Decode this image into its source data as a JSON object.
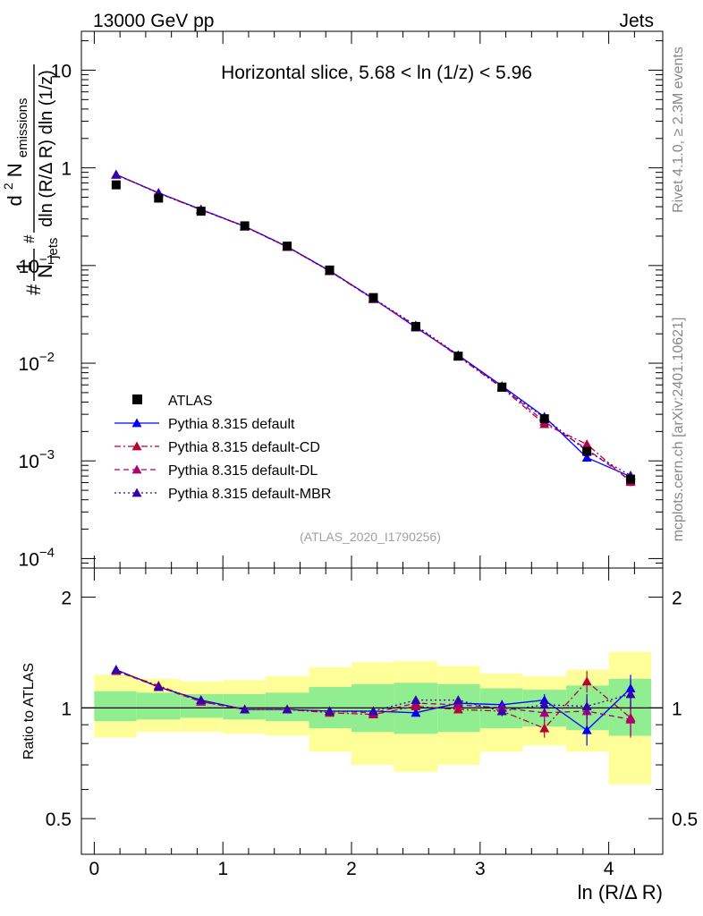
{
  "header": {
    "left": "13000 GeV pp",
    "right": "Jets"
  },
  "side_labels": {
    "rivet": "Rivet 4.1.0, ≥ 2.3M events",
    "mcplots": "mcplots.cern.ch [arXiv:2401.10621]"
  },
  "chart_data": [
    {
      "type": "line",
      "title": "Horizontal slice, 5.68 < ln (1/z) < 5.96",
      "watermark": "(ATLAS_2020_I1790256)",
      "ylabel": {
        "prefix": "#",
        "numerator_1": "1",
        "denominator_1": "N",
        "denominator_1_sub": "jets",
        "prefix_2": "#",
        "numerator_2": "d",
        "numerator_2_sup": "2",
        "numerator_2_rest": " N",
        "numerator_2_sub": "emissions",
        "denominator_2": "dln (R/Δ R) dln (1/z)"
      },
      "yscale": "log",
      "xlim": [
        -0.1,
        4.42
      ],
      "ylim": [
        8e-05,
        25
      ],
      "x_ticks": [
        0,
        1,
        2,
        3,
        4
      ],
      "y_ticks": [
        {
          "value": 10,
          "label": "10",
          "exp": ""
        },
        {
          "value": 1,
          "label": "1",
          "exp": ""
        },
        {
          "value": 0.1,
          "label": "10",
          "exp": "−1"
        },
        {
          "value": 0.01,
          "label": "10",
          "exp": "−2"
        },
        {
          "value": 0.001,
          "label": "10",
          "exp": "−3"
        },
        {
          "value": 0.0001,
          "label": "10",
          "exp": "−4"
        }
      ],
      "x": [
        0.17,
        0.5,
        0.83,
        1.17,
        1.5,
        1.83,
        2.17,
        2.5,
        2.83,
        3.17,
        3.5,
        3.83,
        4.17
      ],
      "bin_edges": [
        0,
        0.33,
        0.67,
        1.0,
        1.33,
        1.67,
        2.0,
        2.33,
        2.67,
        3.0,
        3.33,
        3.67,
        4.0,
        4.33
      ],
      "series": [
        {
          "name": "ATLAS",
          "style": "data",
          "color": "#000000",
          "values": [
            0.67,
            0.49,
            0.36,
            0.255,
            0.158,
            0.09,
            0.047,
            0.0238,
            0.0118,
            0.0057,
            0.0027,
            0.00125,
            0.00065
          ]
        },
        {
          "name": "Pythia 8.315 default",
          "style": "solid",
          "color": "#0000ff",
          "values": [
            0.855,
            0.555,
            0.375,
            0.252,
            0.156,
            0.0885,
            0.0458,
            0.0232,
            0.0121,
            0.00585,
            0.00283,
            0.00108,
            0.00069
          ],
          "errors": [
            0.02,
            0.01,
            0.006,
            0.004,
            0.002,
            0.001,
            0.0006,
            0.0003,
            0.0002,
            0.0001,
            8e-05,
            0.0001,
            6e-05
          ]
        },
        {
          "name": "Pythia 8.315 default-CD",
          "style": "dashdot",
          "color": "#bb0033",
          "values": [
            0.85,
            0.55,
            0.372,
            0.25,
            0.155,
            0.0875,
            0.0452,
            0.0241,
            0.0117,
            0.0056,
            0.00238,
            0.00148,
            0.00061
          ],
          "errors": [
            0.02,
            0.01,
            0.006,
            0.004,
            0.002,
            0.001,
            0.0006,
            0.0003,
            0.0002,
            0.0001,
            8e-05,
            0.00012,
            6e-05
          ]
        },
        {
          "name": "Pythia 8.315 default-DL",
          "style": "dashed",
          "color": "#aa0077",
          "values": [
            0.852,
            0.552,
            0.373,
            0.251,
            0.155,
            0.088,
            0.0454,
            0.0236,
            0.0119,
            0.00575,
            0.00252,
            0.00132,
            0.00063
          ],
          "errors": [
            0.02,
            0.01,
            0.006,
            0.004,
            0.002,
            0.001,
            0.0006,
            0.0003,
            0.0002,
            0.0001,
            8e-05,
            0.00012,
            6e-05
          ]
        },
        {
          "name": "Pythia 8.315 default-MBR",
          "style": "dotted",
          "color": "#3300aa",
          "values": [
            0.853,
            0.553,
            0.374,
            0.252,
            0.156,
            0.0885,
            0.046,
            0.0244,
            0.0121,
            0.0056,
            0.00276,
            0.00126,
            0.00071
          ],
          "errors": [
            0.02,
            0.01,
            0.006,
            0.004,
            0.002,
            0.001,
            0.0006,
            0.0003,
            0.0002,
            0.0001,
            8e-05,
            0.00012,
            6e-05
          ]
        }
      ]
    },
    {
      "type": "line",
      "ylabel": "Ratio to ATLAS",
      "xlabel": "ln (R/Δ R)",
      "yscale": "log",
      "xlim": [
        -0.1,
        4.42
      ],
      "ylim": [
        0.4,
        2.4
      ],
      "x_ticks": [
        0,
        1,
        2,
        3,
        4
      ],
      "y_ticks": [
        0.5,
        1,
        2
      ],
      "bands": {
        "bin_edges": [
          0,
          0.33,
          0.67,
          1.0,
          1.33,
          1.67,
          2.0,
          2.33,
          2.67,
          3.0,
          3.33,
          3.67,
          4.0,
          4.33
        ],
        "yellow_lo": [
          0.83,
          0.86,
          0.86,
          0.85,
          0.84,
          0.76,
          0.7,
          0.67,
          0.7,
          0.76,
          0.79,
          0.76,
          0.62
        ],
        "yellow_hi": [
          1.23,
          1.2,
          1.18,
          1.19,
          1.22,
          1.29,
          1.33,
          1.34,
          1.3,
          1.24,
          1.22,
          1.27,
          1.42
        ],
        "green_lo": [
          0.92,
          0.93,
          0.94,
          0.93,
          0.92,
          0.88,
          0.86,
          0.85,
          0.86,
          0.88,
          0.89,
          0.87,
          0.84
        ],
        "green_hi": [
          1.11,
          1.1,
          1.09,
          1.09,
          1.1,
          1.14,
          1.16,
          1.17,
          1.16,
          1.13,
          1.12,
          1.15,
          1.2
        ],
        "green_color": "#90ee90",
        "yellow_color": "#ffff99"
      },
      "x": [
        0.17,
        0.5,
        0.83,
        1.17,
        1.5,
        1.83,
        2.17,
        2.5,
        2.83,
        3.17,
        3.5,
        3.83,
        4.17
      ],
      "series": [
        {
          "name": "Pythia 8.315 default",
          "style": "solid",
          "color": "#0000ff",
          "values": [
            1.27,
            1.14,
            1.05,
            0.99,
            0.99,
            0.98,
            0.98,
            0.97,
            1.03,
            1.02,
            1.05,
            0.87,
            1.13
          ],
          "errors": [
            0.02,
            0.015,
            0.012,
            0.01,
            0.01,
            0.01,
            0.015,
            0.015,
            0.02,
            0.03,
            0.04,
            0.08,
            0.1
          ]
        },
        {
          "name": "Pythia 8.315 default-CD",
          "style": "dashdot",
          "color": "#bb0033",
          "values": [
            1.26,
            1.15,
            1.04,
            0.99,
            0.99,
            0.97,
            0.96,
            1.01,
            0.99,
            0.98,
            0.88,
            1.18,
            0.94
          ],
          "errors": [
            0.02,
            0.015,
            0.012,
            0.01,
            0.01,
            0.01,
            0.015,
            0.015,
            0.02,
            0.03,
            0.05,
            0.08,
            0.1
          ]
        },
        {
          "name": "Pythia 8.315 default-DL",
          "style": "dashed",
          "color": "#aa0077",
          "values": [
            1.26,
            1.14,
            1.04,
            0.99,
            0.99,
            0.98,
            0.97,
            1.03,
            1.02,
            1.0,
            0.97,
            0.98,
            0.93
          ],
          "errors": [
            0.02,
            0.015,
            0.012,
            0.01,
            0.01,
            0.01,
            0.015,
            0.015,
            0.02,
            0.03,
            0.05,
            0.08,
            0.1
          ]
        },
        {
          "name": "Pythia 8.315 default-MBR",
          "style": "dotted",
          "color": "#3300aa",
          "values": [
            1.27,
            1.14,
            1.05,
            0.99,
            0.99,
            0.98,
            0.98,
            1.05,
            1.05,
            0.98,
            1.02,
            1.01,
            1.09
          ],
          "errors": [
            0.02,
            0.015,
            0.012,
            0.01,
            0.01,
            0.01,
            0.015,
            0.015,
            0.02,
            0.03,
            0.05,
            0.08,
            0.1
          ]
        }
      ]
    }
  ]
}
